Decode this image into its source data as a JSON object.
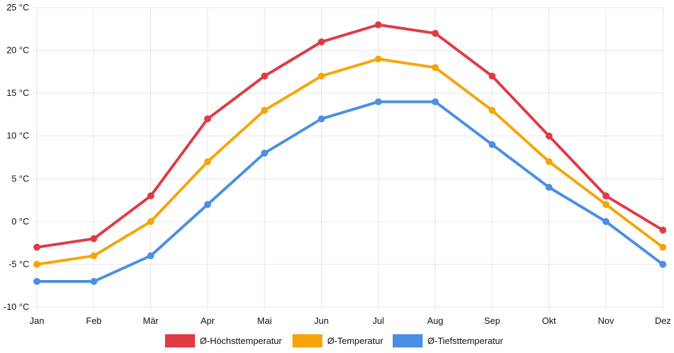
{
  "chart_data": {
    "type": "line",
    "categories": [
      "Jan",
      "Feb",
      "Mär",
      "Apr",
      "Mai",
      "Jun",
      "Jul",
      "Aug",
      "Sep",
      "Okt",
      "Nov",
      "Dez"
    ],
    "y_ticks": [
      "25 °C",
      "20 °C",
      "15 °C",
      "10 °C",
      "5 °C",
      "0 °C",
      "-5 °C",
      "-10 °C"
    ],
    "ylim": [
      -10,
      25
    ],
    "grid": true,
    "legend_position": "bottom",
    "series": [
      {
        "name": "Ø-Höchsttemperatur",
        "color": "#e03a45",
        "values": [
          -3,
          -2,
          3,
          12,
          17,
          21,
          23,
          22,
          17,
          10,
          3,
          -1
        ]
      },
      {
        "name": "Ø-Temperatur",
        "color": "#f5a50b",
        "values": [
          -5,
          -4,
          0,
          7,
          13,
          17,
          19,
          18,
          13,
          7,
          2,
          -3
        ]
      },
      {
        "name": "Ø-Tiefsttemperatur",
        "color": "#4a90e2",
        "values": [
          -7,
          -7,
          -4,
          2,
          8,
          12,
          14,
          14,
          9,
          4,
          0,
          -5
        ]
      }
    ]
  }
}
